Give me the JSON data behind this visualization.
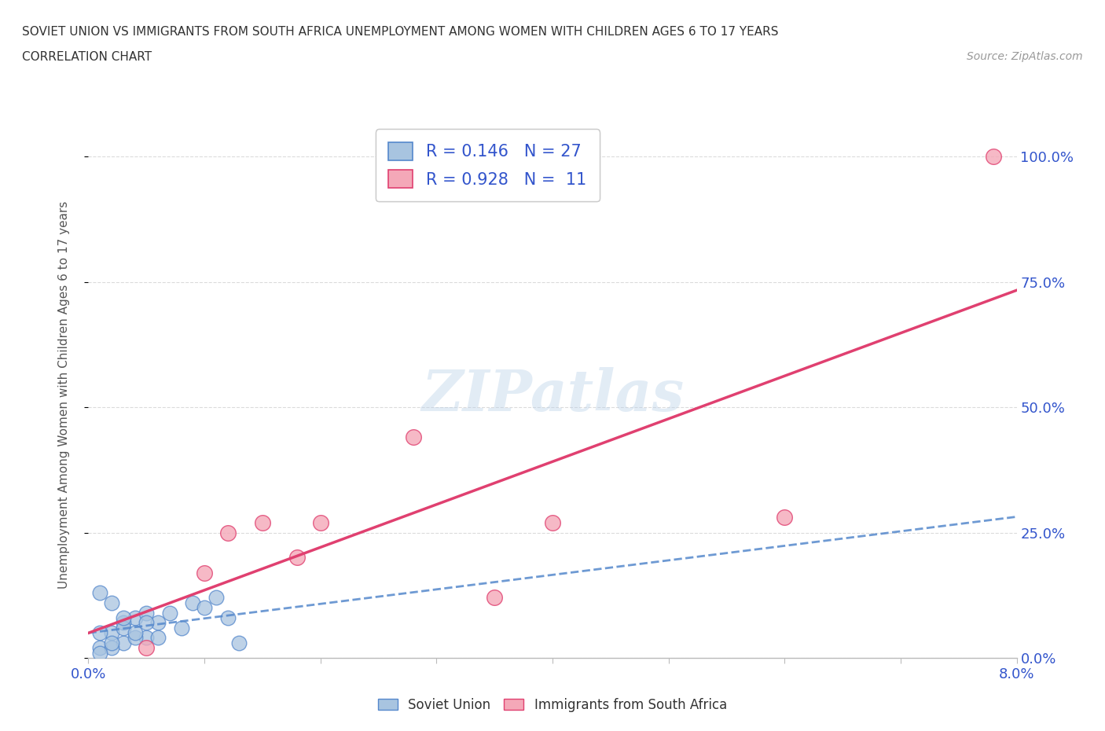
{
  "title_line1": "SOVIET UNION VS IMMIGRANTS FROM SOUTH AFRICA UNEMPLOYMENT AMONG WOMEN WITH CHILDREN AGES 6 TO 17 YEARS",
  "title_line2": "CORRELATION CHART",
  "source_text": "Source: ZipAtlas.com",
  "ylabel": "Unemployment Among Women with Children Ages 6 to 17 years",
  "xlim": [
    0.0,
    0.08
  ],
  "ylim": [
    0.0,
    1.05
  ],
  "xticks": [
    0.0,
    0.01,
    0.02,
    0.03,
    0.04,
    0.05,
    0.06,
    0.07,
    0.08
  ],
  "xticklabels": [
    "0.0%",
    "",
    "",
    "",
    "",
    "",
    "",
    "",
    "8.0%"
  ],
  "ytick_positions": [
    0.0,
    0.25,
    0.5,
    0.75,
    1.0
  ],
  "ytick_labels": [
    "0.0%",
    "25.0%",
    "50.0%",
    "75.0%",
    "100.0%"
  ],
  "watermark": "ZIPatlas",
  "soviet_color": "#a8c4e0",
  "south_africa_color": "#f4a8b8",
  "soviet_line_color": "#5588cc",
  "south_africa_line_color": "#e04070",
  "legend_text_color": "#3355cc",
  "r_soviet": 0.146,
  "n_soviet": 27,
  "r_south_africa": 0.928,
  "n_south_africa": 11,
  "soviet_x": [
    0.001,
    0.002,
    0.003,
    0.004,
    0.005,
    0.006,
    0.007,
    0.008,
    0.009,
    0.01,
    0.011,
    0.012,
    0.013,
    0.001,
    0.002,
    0.003,
    0.004,
    0.005,
    0.001,
    0.002,
    0.003,
    0.001,
    0.002,
    0.004,
    0.003,
    0.006,
    0.005
  ],
  "soviet_y": [
    0.02,
    0.05,
    0.03,
    0.08,
    0.04,
    0.07,
    0.09,
    0.06,
    0.11,
    0.1,
    0.12,
    0.08,
    0.03,
    0.05,
    0.02,
    0.07,
    0.04,
    0.09,
    0.13,
    0.11,
    0.06,
    0.01,
    0.03,
    0.05,
    0.08,
    0.04,
    0.07
  ],
  "south_africa_x": [
    0.005,
    0.01,
    0.012,
    0.015,
    0.018,
    0.02,
    0.028,
    0.035,
    0.04,
    0.06,
    0.078
  ],
  "south_africa_y": [
    0.02,
    0.17,
    0.25,
    0.27,
    0.2,
    0.27,
    0.44,
    0.12,
    0.27,
    0.28,
    1.0
  ],
  "background_color": "#ffffff",
  "grid_color": "#cccccc",
  "axis_color": "#bbbbbb"
}
